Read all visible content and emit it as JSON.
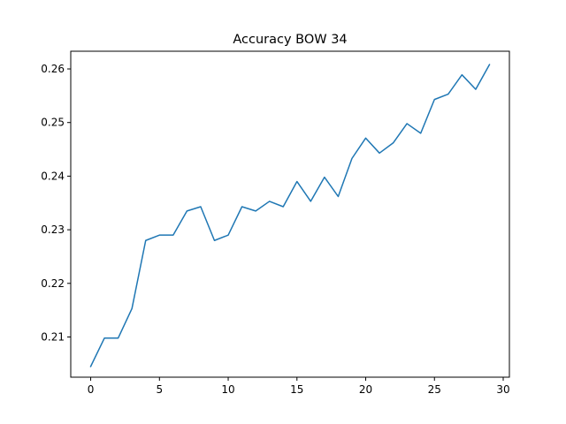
{
  "chart_data": {
    "type": "line",
    "title": "Accuracy BOW 34",
    "xlabel": "",
    "ylabel": "",
    "xlim": [
      -1.45,
      30.45
    ],
    "ylim": [
      0.2025,
      0.2633
    ],
    "xticks": [
      0,
      5,
      10,
      15,
      20,
      25,
      30
    ],
    "yticks": [
      0.21,
      0.22,
      0.23,
      0.24,
      0.25,
      0.26
    ],
    "grid": false,
    "legend": "none",
    "series": [
      {
        "color": "#1f77b4",
        "x": [
          0,
          1,
          2,
          3,
          4,
          5,
          6,
          7,
          8,
          9,
          10,
          11,
          12,
          13,
          14,
          15,
          16,
          17,
          18,
          19,
          20,
          21,
          22,
          23,
          24,
          25,
          26,
          27,
          28,
          29
        ],
        "y": [
          0.2045,
          0.2098,
          0.2098,
          0.2153,
          0.228,
          0.229,
          0.229,
          0.2335,
          0.2343,
          0.228,
          0.229,
          0.2343,
          0.2335,
          0.2353,
          0.2343,
          0.239,
          0.2353,
          0.2398,
          0.2362,
          0.2433,
          0.2471,
          0.2443,
          0.2462,
          0.2498,
          0.248,
          0.2543,
          0.2553,
          0.2589,
          0.2562,
          0.2608
        ]
      }
    ]
  }
}
